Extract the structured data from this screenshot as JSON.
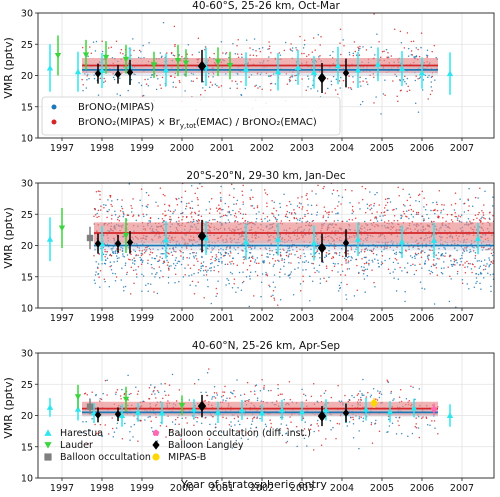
{
  "figure": {
    "xlabel": "Year of stratospheric entry",
    "ylabel": "VMR (pptv)"
  },
  "colors": {
    "mipas": "#1f77b4",
    "scaled": "#d62728",
    "band": "#e8898b",
    "harestua": "#2ee6f0",
    "lauder": "#3cd43c",
    "balloon_occ": "#7f7f7f",
    "balloon_occ_diff": "#ff69b4",
    "balloon_langley": "#000000",
    "mipas_b": "#ffd700"
  },
  "legend_top": [
    {
      "label": "BrONO₂(MIPAS)",
      "color": "#1f77b4"
    },
    {
      "label": "BrONO₂(MIPAS) × Br",
      "sub1": "y,tot",
      "label2": "(EMAC) / BrONO₂(EMAC)",
      "color": "#d62728"
    }
  ],
  "legend_bottom": [
    {
      "label": "Harestua",
      "marker": "triangle-up",
      "color": "#2ee6f0"
    },
    {
      "label": "Lauder",
      "marker": "triangle-down",
      "color": "#3cd43c"
    },
    {
      "label": "Balloon occultation",
      "marker": "square",
      "color": "#7f7f7f"
    },
    {
      "label": "Balloon occultation (diff. inst.)",
      "marker": "pentagon",
      "color": "#ff69b4"
    },
    {
      "label": "Balloon Langley",
      "marker": "diamond",
      "color": "#000000"
    },
    {
      "label": "MIPAS-B",
      "marker": "circle",
      "color": "#ffd700"
    }
  ],
  "chart_data": [
    {
      "type": "scatter",
      "title": "40-60°S, 25-26 km, Oct-Mar",
      "xlim": [
        1996.4,
        2007.8
      ],
      "ylim": [
        10,
        30
      ],
      "yticks": [
        10,
        15,
        20,
        25,
        30
      ],
      "xticks": [
        1997,
        1998,
        1999,
        2000,
        2001,
        2002,
        2003,
        2004,
        2005,
        2006,
        2007
      ],
      "grid": true,
      "legend": "bottom-left",
      "mipas_range": [
        1997.5,
        2006.4
      ],
      "mean_red": 21.6,
      "band_red": [
        20.4,
        22.8
      ],
      "mean_blue": 20.9,
      "band_blue": [
        20.0,
        21.8
      ],
      "cloud_center": 21,
      "cloud_spread": 2.8,
      "series": [
        {
          "name": "Harestua",
          "points": [
            [
              1996.7,
              21.2,
              3.8
            ],
            [
              1997.4,
              20.6,
              3.2
            ],
            [
              1998.0,
              20.8,
              2.8
            ],
            [
              1998.7,
              21.5,
              3.0
            ],
            [
              1999.6,
              20.9,
              2.6
            ],
            [
              2000.6,
              21.4,
              3.1
            ],
            [
              2001.6,
              21.0,
              2.7
            ],
            [
              2002.4,
              20.6,
              3.0
            ],
            [
              2002.9,
              21.3,
              2.8
            ],
            [
              2003.3,
              20.5,
              2.6
            ],
            [
              2003.9,
              21.6,
              3.0
            ],
            [
              2004.4,
              20.9,
              2.9
            ],
            [
              2004.9,
              21.8,
              2.7
            ],
            [
              2005.5,
              21.1,
              2.8
            ],
            [
              2006.0,
              20.4,
              2.5
            ],
            [
              2006.7,
              20.3,
              3.4
            ]
          ]
        },
        {
          "name": "Lauder",
          "points": [
            [
              1996.9,
              23.2,
              3.2
            ],
            [
              1997.6,
              23.3,
              2.4
            ],
            [
              1998.1,
              22.9,
              2.6
            ],
            [
              1998.6,
              22.6,
              2.3
            ],
            [
              1999.3,
              21.7,
              2.1
            ],
            [
              1999.9,
              22.4,
              2.5
            ],
            [
              2000.1,
              22.0,
              2.2
            ],
            [
              2000.9,
              22.2,
              2.3
            ],
            [
              2001.2,
              21.6,
              2.2
            ]
          ]
        },
        {
          "name": "Balloon Langley",
          "points": [
            [
              1997.9,
              20.3,
              1.6
            ],
            [
              1998.4,
              20.2,
              1.5
            ],
            [
              1998.7,
              20.5,
              2.0
            ],
            [
              2000.5,
              21.5,
              2.6
            ],
            [
              2003.5,
              19.6,
              2.4
            ],
            [
              2004.1,
              20.4,
              2.3
            ]
          ]
        }
      ]
    },
    {
      "type": "scatter",
      "title": "20°S-20°N, 29-30 km, Jan-Dec",
      "xlim": [
        1996.4,
        2007.8
      ],
      "ylim": [
        10,
        30
      ],
      "yticks": [
        10,
        15,
        20,
        25,
        30
      ],
      "xticks": [
        1997,
        1998,
        1999,
        2000,
        2001,
        2002,
        2003,
        2004,
        2005,
        2006,
        2007
      ],
      "grid": true,
      "mipas_range": [
        1997.8,
        2007.8
      ],
      "mean_red": 22.0,
      "band_red": [
        20.3,
        23.7
      ],
      "mean_blue": 20.0,
      "band_blue": [
        19.2,
        20.8
      ],
      "cloud_center": 21.5,
      "cloud_spread": 4.2,
      "series": [
        {
          "name": "Harestua",
          "points": [
            [
              1996.7,
              21.0,
              3.5
            ],
            [
              1998.0,
              20.3,
              2.8
            ],
            [
              1999.6,
              20.9,
              3.0
            ],
            [
              2000.6,
              21.2,
              2.7
            ],
            [
              2001.6,
              20.6,
              2.9
            ],
            [
              2002.4,
              21.0,
              2.6
            ],
            [
              2003.3,
              20.4,
              2.8
            ],
            [
              2004.4,
              21.0,
              2.7
            ],
            [
              2005.5,
              20.6,
              2.6
            ],
            [
              2006.3,
              20.8,
              2.8
            ],
            [
              2007.4,
              21.1,
              2.5
            ]
          ]
        },
        {
          "name": "Lauder",
          "points": [
            [
              1997.0,
              22.8,
              3.2
            ],
            [
              1998.6,
              21.6,
              2.8
            ]
          ]
        },
        {
          "name": "Balloon occultation",
          "points": [
            [
              1997.7,
              21.2,
              1.8
            ]
          ]
        },
        {
          "name": "Balloon Langley",
          "points": [
            [
              1997.9,
              20.3,
              1.6
            ],
            [
              1998.4,
              20.3,
              1.4
            ],
            [
              1998.7,
              20.5,
              1.8
            ],
            [
              2000.5,
              21.5,
              2.6
            ],
            [
              2003.5,
              19.6,
              2.3
            ],
            [
              2004.1,
              20.4,
              2.2
            ]
          ]
        }
      ]
    },
    {
      "type": "scatter",
      "title": "40-60°N, 25-26 km, Apr-Sep",
      "xlim": [
        1996.4,
        2007.8
      ],
      "ylim": [
        10,
        30
      ],
      "yticks": [
        10,
        15,
        20,
        25,
        30
      ],
      "xticks": [
        1997,
        1998,
        1999,
        2000,
        2001,
        2002,
        2003,
        2004,
        2005,
        2006,
        2007
      ],
      "grid": true,
      "legend": "bottom-left",
      "mipas_range": [
        1997.5,
        2006.4
      ],
      "mean_red": 21.1,
      "band_red": [
        20.0,
        22.2
      ],
      "mean_blue": 20.5,
      "band_blue": [
        19.8,
        21.2
      ],
      "cloud_center": 20.8,
      "cloud_spread": 2.6,
      "series": [
        {
          "name": "Harestua",
          "points": [
            [
              1996.7,
              21.3,
              1.5
            ],
            [
              1997.4,
              21.0,
              1.8
            ],
            [
              1997.8,
              20.4,
              1.6
            ],
            [
              1998.5,
              20.0,
              1.8
            ],
            [
              1998.9,
              20.5,
              1.5
            ],
            [
              1999.5,
              20.4,
              1.8
            ],
            [
              2000.3,
              21.0,
              1.6
            ],
            [
              2000.9,
              20.5,
              1.7
            ],
            [
              2001.5,
              20.9,
              1.6
            ],
            [
              2002.0,
              20.4,
              1.4
            ],
            [
              2002.5,
              20.9,
              1.6
            ],
            [
              2003.0,
              20.6,
              1.5
            ],
            [
              2003.6,
              20.9,
              1.7
            ],
            [
              2004.1,
              20.4,
              1.6
            ],
            [
              2004.6,
              21.0,
              1.8
            ],
            [
              2005.2,
              20.6,
              1.7
            ],
            [
              2005.8,
              21.2,
              1.5
            ],
            [
              2006.7,
              20.0,
              1.8
            ]
          ]
        },
        {
          "name": "Lauder",
          "points": [
            [
              1997.4,
              23.0,
              1.9
            ],
            [
              1998.6,
              22.6,
              2.0
            ],
            [
              2000.0,
              21.6,
              1.6
            ]
          ]
        },
        {
          "name": "Balloon occultation",
          "points": [
            [
              1997.7,
              21.4,
              1.2
            ]
          ]
        },
        {
          "name": "Balloon occultation (diff. inst.)",
          "points": [
            [
              2006.3,
              21.0,
              0.9
            ]
          ]
        },
        {
          "name": "Balloon Langley",
          "points": [
            [
              1997.9,
              20.1,
              1.2
            ],
            [
              1998.4,
              20.2,
              1.1
            ],
            [
              2000.5,
              21.5,
              1.8
            ],
            [
              2003.5,
              19.9,
              1.6
            ],
            [
              2004.1,
              20.4,
              1.5
            ]
          ]
        },
        {
          "name": "MIPAS-B",
          "points": [
            [
              2004.8,
              22.0,
              0.8
            ]
          ]
        }
      ]
    }
  ]
}
